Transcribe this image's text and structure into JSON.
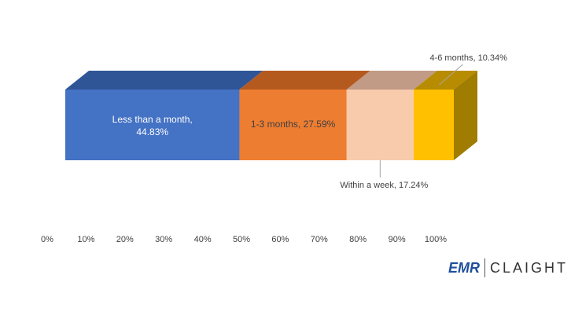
{
  "chart_data": {
    "type": "stacked-bar-3d",
    "series": [
      {
        "color": "#4472c4",
        "top": "#2f5597",
        "values": [
          44.83
        ],
        "value_labels": [
          "Less than a month, 44.83%"
        ]
      },
      {
        "color": "#ed7d31",
        "top": "#b55a1f",
        "values": [
          27.59
        ],
        "value_labels": [
          "1-3 months, 27.59%"
        ]
      },
      {
        "color": "#f8cbad",
        "top": "#c19b86",
        "values": [
          17.24
        ],
        "value_labels": [
          "Within a week, 17.24%"
        ]
      },
      {
        "color": "#ffc000",
        "top": "#b88c00",
        "values": [
          10.34
        ],
        "value_labels": [
          "4-6 months, 10.34%"
        ]
      }
    ],
    "xlim": [
      0,
      100
    ],
    "xticks": [
      {
        "value": 0,
        "label": "0%"
      },
      {
        "value": 10,
        "label": "10%"
      },
      {
        "value": 20,
        "label": "20%"
      },
      {
        "value": 30,
        "label": "30%"
      },
      {
        "value": 40,
        "label": "40%"
      },
      {
        "value": 50,
        "label": "50%"
      },
      {
        "value": 60,
        "label": "60%"
      },
      {
        "value": 70,
        "label": "70%"
      },
      {
        "value": 80,
        "label": "80%"
      },
      {
        "value": 90,
        "label": "90%"
      },
      {
        "value": 100,
        "label": "100%"
      }
    ]
  },
  "logo": {
    "left": "EMR",
    "right": "CLAIGHT"
  }
}
